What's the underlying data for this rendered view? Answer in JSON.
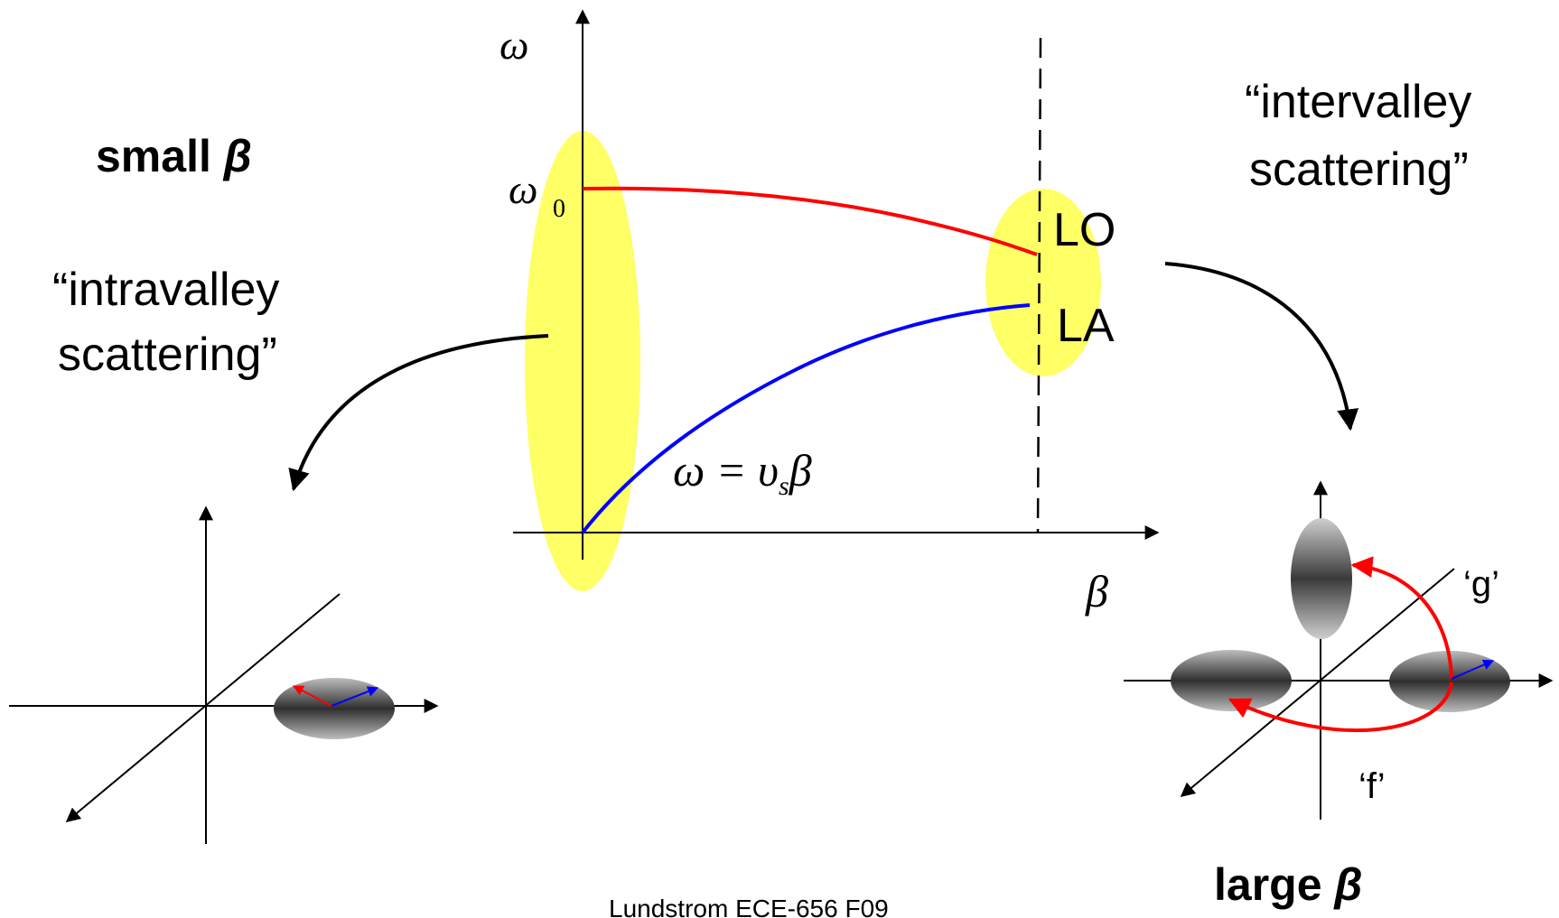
{
  "main_plot": {
    "y_axis_symbol": "ω",
    "omega0_symbol": "ω",
    "omega0_subscript": "0",
    "x_axis_symbol": "β",
    "lo_label": "LO",
    "la_label": "LA",
    "equation_lhs": "ω = υ",
    "equation_sub": "s",
    "equation_rhs": "β"
  },
  "left_panel": {
    "heading_word": "small ",
    "heading_symbol": "β",
    "quote_line1": "“intravalley",
    "quote_line2": "scattering”"
  },
  "right_panel": {
    "quote_line1": "“intervalley",
    "quote_line2": "scattering”",
    "label_g": "‘g’",
    "label_f": "‘f’",
    "heading_word": "large ",
    "heading_symbol": "β"
  },
  "footer": {
    "credit": "Lundstrom ECE-656 F09"
  },
  "colors": {
    "lo_branch": "#ff0000",
    "la_branch": "#0000ff",
    "highlight": "#ffff66",
    "valley_dark": "#444444",
    "valley_light": "#d8d8d8"
  }
}
